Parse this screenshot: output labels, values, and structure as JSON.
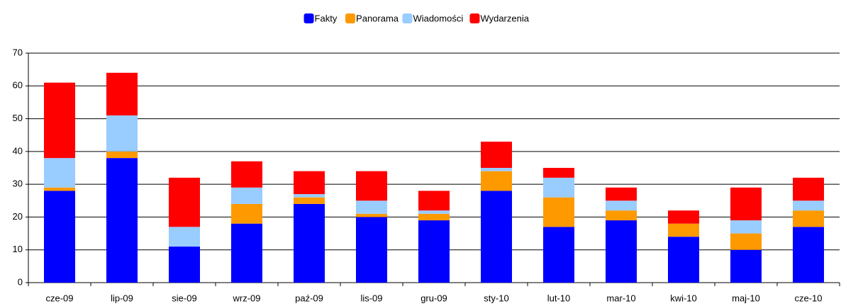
{
  "chart_data": {
    "type": "stacked_bar",
    "categories": [
      "cze-09",
      "lip-09",
      "sie-09",
      "wrz-09",
      "paź-09",
      "lis-09",
      "gru-09",
      "sty-10",
      "lut-10",
      "mar-10",
      "kwi-10",
      "maj-10",
      "cze-10"
    ],
    "series": [
      {
        "name": "Fakty",
        "color": "#0000ff",
        "values": [
          28,
          38,
          11,
          18,
          24,
          20,
          19,
          28,
          17,
          19,
          14,
          10,
          17
        ]
      },
      {
        "name": "Panorama",
        "color": "#ff9900",
        "values": [
          1,
          2,
          0,
          6,
          2,
          1,
          2,
          6,
          9,
          3,
          4,
          5,
          5
        ]
      },
      {
        "name": "Wiadomości",
        "color": "#99ccff",
        "values": [
          9,
          11,
          6,
          5,
          1,
          4,
          1,
          1,
          6,
          3,
          0,
          4,
          3
        ]
      },
      {
        "name": "Wydarzenia",
        "color": "#ff0000",
        "values": [
          23,
          13,
          15,
          8,
          7,
          9,
          6,
          8,
          3,
          4,
          4,
          10,
          7
        ]
      }
    ],
    "ylim": [
      0,
      70
    ],
    "yticks": [
      0,
      10,
      20,
      30,
      40,
      50,
      60,
      70
    ],
    "grid": true,
    "legend": "top"
  }
}
